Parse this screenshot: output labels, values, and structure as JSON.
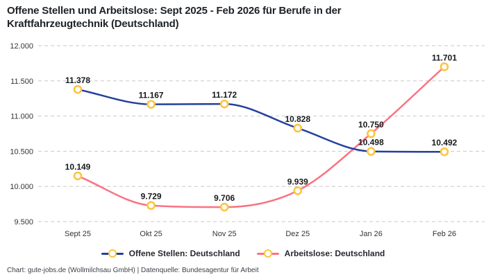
{
  "header": {
    "title_line1": "Offene Stellen und Arbeitslose: Sept 2025 - Feb 2026 für Berufe in der",
    "title_line2": "Kraftfahrzeugtechnik (Deutschland)"
  },
  "chart_data": {
    "type": "line",
    "title": "Offene Stellen und Arbeitslose: Sept 2025 - Feb 2026 für Berufe in der Kraftfahrzeugtechnik (Deutschland)",
    "categories": [
      "Sept 25",
      "Okt 25",
      "Nov 25",
      "Dez 25",
      "Jan 26",
      "Feb 26"
    ],
    "series": [
      {
        "name": "Offene Stellen: Deutschland",
        "color": "#22409c",
        "values": [
          11378,
          11167,
          11172,
          10828,
          10498,
          10492
        ]
      },
      {
        "name": "Arbeitslose: Deutschland",
        "color": "#fa7282",
        "values": [
          10149,
          9729,
          9706,
          9939,
          10750,
          11701
        ]
      }
    ],
    "ylim": [
      9500,
      12000
    ],
    "yticks": [
      9500,
      10000,
      10500,
      11000,
      11500,
      12000
    ],
    "grid": true,
    "gridline_color": "#c7c7c7",
    "axis_text_color": "#333333",
    "data_label_color": "#17191d",
    "legend_position": "bottom",
    "marker": {
      "shape": "ring-circle",
      "ring_color": "#fdc43f",
      "fill": "#ffffff"
    },
    "number_format": "de-DE (thousands dot)",
    "data_labels": true,
    "curve": "smooth-monotone"
  },
  "footer": {
    "text": "Chart: gute-jobs.de (Wollmilchsau GmbH) | Datenquelle: Bundesagentur für Arbeit"
  }
}
